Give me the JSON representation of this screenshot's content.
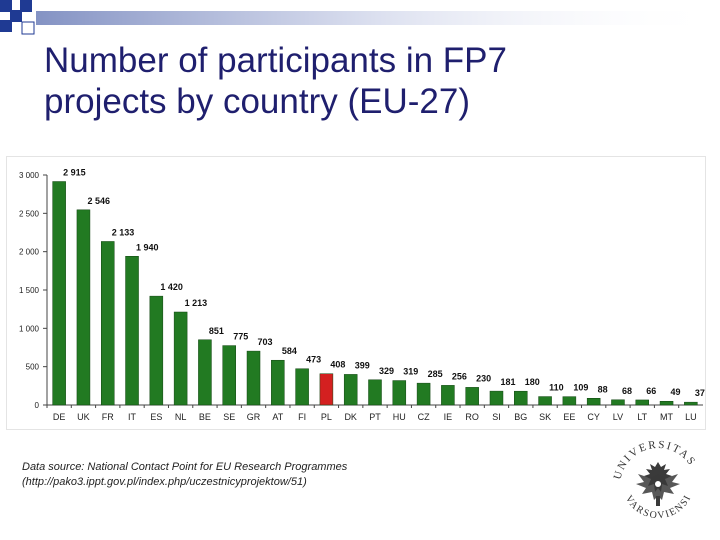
{
  "slide": {
    "title_line1": "Number of participants in FP7",
    "title_line2": "projects by country (EU-27)",
    "source_line1": "Data source: National Contact Point for EU Research Programmes",
    "source_line2": "(http://pako3.ippt.gov.pl/index.php/uczestnicyprojektow/51)",
    "logo_text_top": "UNIVERSITAS",
    "logo_text_bottom": "VARSOVIENSIS"
  },
  "colors": {
    "title": "#1f1f6e",
    "bar": "#227a22",
    "highlight": "#d42020",
    "corner_squares": "#1f3a93"
  },
  "chart_data": {
    "type": "bar",
    "categories": [
      "DE",
      "UK",
      "FR",
      "IT",
      "ES",
      "NL",
      "BE",
      "SE",
      "GR",
      "AT",
      "FI",
      "PL",
      "DK",
      "PT",
      "HU",
      "CZ",
      "IE",
      "RO",
      "SI",
      "BG",
      "SK",
      "EE",
      "CY",
      "LV",
      "LT",
      "MT",
      "LU"
    ],
    "values": [
      2915,
      2546,
      2133,
      1940,
      1420,
      1213,
      851,
      775,
      703,
      584,
      473,
      408,
      399,
      329,
      319,
      285,
      256,
      230,
      181,
      180,
      110,
      109,
      88,
      68,
      66,
      49,
      37
    ],
    "value_labels": [
      "2 915",
      "2 546",
      "2 133",
      "1 940",
      "1 420",
      "1 213",
      "851",
      "775",
      "703",
      "584",
      "473",
      "408",
      "399",
      "329",
      "319",
      "285",
      "256",
      "230",
      "181",
      "180",
      "110",
      "109",
      "88",
      "68",
      "66",
      "49",
      "37"
    ],
    "highlight": "PL",
    "ylim": [
      0,
      3000
    ],
    "yticks": [
      0,
      500,
      1000,
      1500,
      2000,
      2500,
      3000
    ],
    "ytick_labels": [
      "0",
      "500",
      "1 000",
      "1 500",
      "2 000",
      "2 500",
      "3 000"
    ],
    "grid": false,
    "legend": "none"
  }
}
